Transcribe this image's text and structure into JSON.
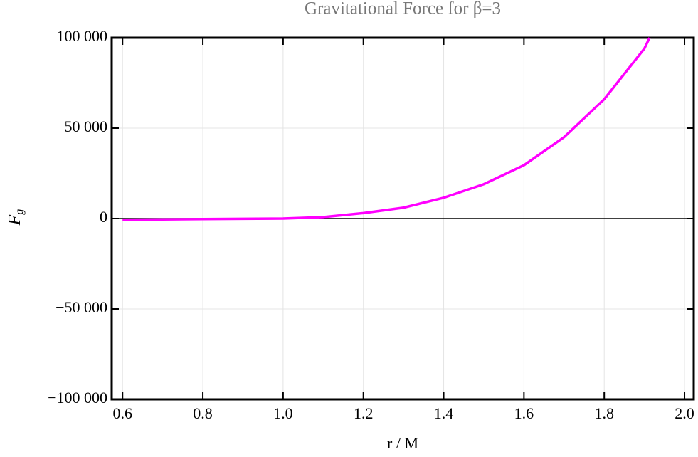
{
  "chart_data": {
    "type": "line",
    "title": "Gravitational Force for β=3",
    "x_label": "r / M",
    "y_label": "F",
    "y_label_sub": "g",
    "x": [
      0.6,
      0.7,
      0.8,
      0.9,
      1.0,
      1.1,
      1.2,
      1.3,
      1.4,
      1.5,
      1.6,
      1.7,
      1.8,
      1.9,
      1.913
    ],
    "series": [
      {
        "color": "#ff00ff",
        "values": [
          -700,
          -500,
          -300,
          -150,
          0,
          800,
          3000,
          6000,
          11500,
          19000,
          29500,
          45000,
          66000,
          94000,
          100000
        ]
      }
    ],
    "xlim": [
      0.573,
      2.023
    ],
    "ylim": [
      -100000,
      100000
    ],
    "xticks": [
      0.6,
      0.8,
      {
        "value": 1,
        "label": "1.0"
      },
      1.2,
      1.4,
      1.6,
      1.8,
      {
        "value": 2,
        "label": "2.0"
      }
    ],
    "yticks": [
      {
        "value": -100000,
        "label": "−100 000"
      },
      {
        "value": -50000,
        "label": "−50 000"
      },
      0,
      {
        "value": 50000,
        "label": "50 000"
      },
      {
        "value": 100000,
        "label": "100 000"
      }
    ],
    "grid": true
  }
}
